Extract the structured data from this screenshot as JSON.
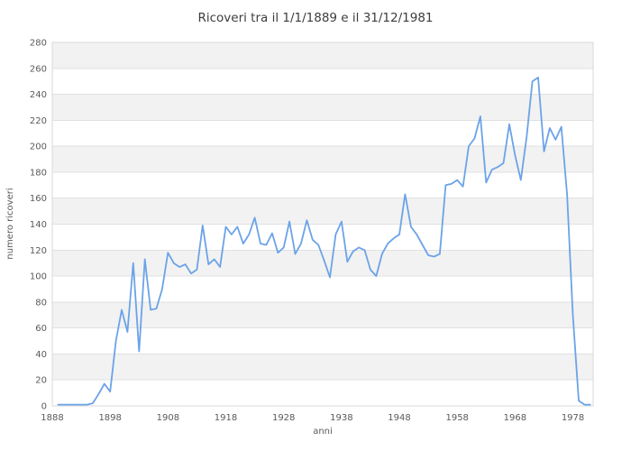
{
  "chart_data": {
    "type": "line",
    "title": "Ricoveri tra il 1/1/1889 e il 31/12/1981",
    "xlabel": "anni",
    "ylabel": "numero ricoveri",
    "xlim": [
      1888,
      1981.5
    ],
    "ylim": [
      0,
      280
    ],
    "x_ticks": [
      1888,
      1898,
      1908,
      1918,
      1928,
      1938,
      1948,
      1958,
      1968,
      1978
    ],
    "y_ticks": [
      0,
      20,
      40,
      60,
      80,
      100,
      120,
      140,
      160,
      180,
      200,
      220,
      240,
      260,
      280
    ],
    "grid": "horizontal gridlines every 20 units with alternating white/light-gray bands",
    "legend": "none",
    "line_color": "#6BA3E8",
    "band_gray": "#f2f2f2",
    "band_white": "#ffffff",
    "gridline_color": "#e0e0e0",
    "border_color": "#d9d9d9",
    "x": [
      1889,
      1890,
      1891,
      1892,
      1893,
      1894,
      1895,
      1896,
      1897,
      1898,
      1899,
      1900,
      1901,
      1902,
      1903,
      1904,
      1905,
      1906,
      1907,
      1908,
      1909,
      1910,
      1911,
      1912,
      1913,
      1914,
      1915,
      1916,
      1917,
      1918,
      1919,
      1920,
      1921,
      1922,
      1923,
      1924,
      1925,
      1926,
      1927,
      1928,
      1929,
      1930,
      1931,
      1932,
      1933,
      1934,
      1935,
      1936,
      1937,
      1938,
      1939,
      1940,
      1941,
      1942,
      1943,
      1944,
      1945,
      1946,
      1947,
      1948,
      1949,
      1950,
      1951,
      1952,
      1953,
      1954,
      1955,
      1956,
      1957,
      1958,
      1959,
      1960,
      1961,
      1962,
      1963,
      1964,
      1965,
      1966,
      1967,
      1968,
      1969,
      1970,
      1971,
      1972,
      1973,
      1974,
      1975,
      1976,
      1977,
      1978,
      1979,
      1980,
      1981
    ],
    "values": [
      1,
      1,
      1,
      1,
      1,
      1,
      2,
      9,
      17,
      11,
      50,
      74,
      57,
      110,
      42,
      113,
      74,
      75,
      90,
      118,
      110,
      107,
      109,
      102,
      105,
      139,
      109,
      113,
      107,
      138,
      132,
      138,
      125,
      132,
      145,
      125,
      124,
      133,
      118,
      122,
      142,
      117,
      125,
      143,
      128,
      124,
      112,
      99,
      132,
      142,
      111,
      119,
      122,
      120,
      105,
      100,
      117,
      125,
      129,
      132,
      163,
      138,
      132,
      124,
      116,
      115,
      117,
      170,
      171,
      174,
      169,
      200,
      206,
      223,
      172,
      182,
      184,
      187,
      217,
      193,
      174,
      207,
      250,
      253,
      196,
      214,
      205,
      215,
      163,
      70,
      4,
      1,
      1
    ]
  }
}
